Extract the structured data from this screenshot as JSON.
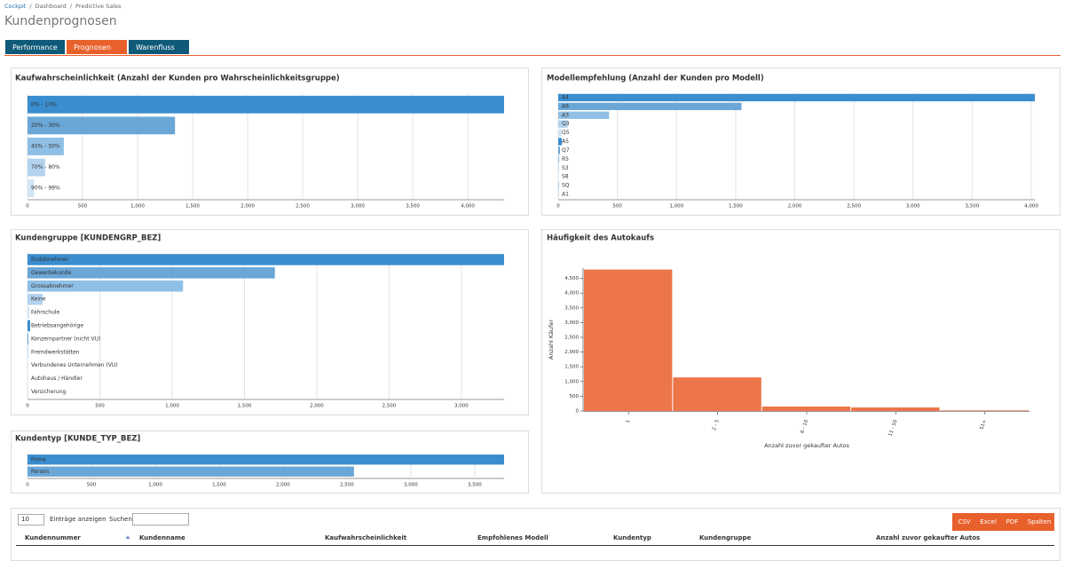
{
  "breadcrumb": [
    "Cockpit",
    "Dashboard",
    "Predictive Sales"
  ],
  "breadcrumb_separator": "/",
  "page_title": "Kundenprognosen",
  "tabs": [
    "Performance",
    "Prognosen",
    "Warenfluss"
  ],
  "chart_data": [
    {
      "type": "bar",
      "orientation": "horizontal",
      "title": "Kaufwahrscheinlichkeit (Anzahl der Kunden pro Wahrscheinlichkeitsgruppe)",
      "categories": [
        "0% - 10%",
        "20% - 30%",
        "40% - 50%",
        "70% - 80%",
        "90% - 99%"
      ],
      "values": [
        4330,
        1340,
        330,
        160,
        60
      ],
      "colors": [
        "#3a8dce",
        "#6aa6d6",
        "#8fbfe5",
        "#b3d3ee",
        "#d3e5f4"
      ],
      "xlim": [
        0,
        4330
      ],
      "xticks": [
        0,
        500,
        {
          "value": 1000,
          "label": "1,000"
        },
        {
          "value": 1500,
          "label": "1,500"
        },
        {
          "value": 2000,
          "label": "2,000"
        },
        {
          "value": 2500,
          "label": "2,500"
        },
        {
          "value": 3000,
          "label": "3,000"
        },
        {
          "value": 3500,
          "label": "3,500"
        },
        {
          "value": 4000,
          "label": "4,000"
        }
      ],
      "grid": true
    },
    {
      "type": "bar",
      "orientation": "horizontal",
      "title": "Modellempfehlung (Anzahl der Kunden pro Modell)",
      "categories": [
        "A4",
        "A6",
        "A3",
        "Q3",
        "Q5",
        "A5",
        "Q7",
        "R5",
        "S3",
        "S8",
        "SQ",
        "A1"
      ],
      "values": [
        4030,
        1550,
        430,
        80,
        30,
        30,
        15,
        8,
        5,
        5,
        3,
        2
      ],
      "colors": [
        "#3a8dce",
        "#6aa6d6",
        "#8fbfe5",
        "#b3d3ee",
        "#d3e5f4"
      ],
      "xlim": [
        0,
        4030
      ],
      "xticks": [
        0,
        500,
        {
          "value": 1000,
          "label": "1,000"
        },
        {
          "value": 1500,
          "label": "1,500"
        },
        {
          "value": 2000,
          "label": "2,000"
        },
        {
          "value": 2500,
          "label": "2,500"
        },
        {
          "value": 3000,
          "label": "3,000"
        },
        {
          "value": 3500,
          "label": "3,500"
        },
        {
          "value": 4000,
          "label": "4,000"
        }
      ],
      "grid": true
    },
    {
      "type": "bar",
      "orientation": "horizontal",
      "title": "Kundengruppe [KUNDENGRP_BEZ]",
      "categories": [
        "Endabnehmer",
        "Gewerbekunde",
        "Grossabnehmer",
        "Keine",
        "Fahrschule",
        "Betriebsangehörige",
        "Konzernpartner (nicht VU)",
        "Fremdwerkstätten",
        "Verbundenes Unternehmen (VU)",
        "Autohaus / Händler",
        "Versicherung"
      ],
      "values": [
        3295,
        1710,
        1075,
        105,
        12,
        18,
        6,
        3,
        2,
        1,
        1
      ],
      "colors": [
        "#3a8dce",
        "#6aa6d6",
        "#8fbfe5",
        "#b3d3ee",
        "#d3e5f4"
      ],
      "xlim": [
        0,
        3295
      ],
      "xticks": [
        0,
        500,
        {
          "value": 1000,
          "label": "1,000"
        },
        {
          "value": 1500,
          "label": "1,500"
        },
        {
          "value": 2000,
          "label": "2,000"
        },
        {
          "value": 2500,
          "label": "2,500"
        },
        {
          "value": 3000,
          "label": "3,000"
        }
      ],
      "grid": true
    },
    {
      "type": "bar",
      "orientation": "horizontal",
      "title": "Kundentyp [KUNDE_TYP_BEZ]",
      "categories": [
        "Firma",
        "Person"
      ],
      "values": [
        3730,
        2555
      ],
      "colors": [
        "#3a8dce",
        "#6aa6d6"
      ],
      "xlim": [
        0,
        3730
      ],
      "xticks": [
        0,
        500,
        {
          "value": 1000,
          "label": "1,000"
        },
        {
          "value": 1500,
          "label": "1,500"
        },
        {
          "value": 2000,
          "label": "2,000"
        },
        {
          "value": 2500,
          "label": "2,500"
        },
        {
          "value": 3000,
          "label": "3,000"
        },
        {
          "value": 3500,
          "label": "3,500"
        }
      ],
      "grid": true
    },
    {
      "type": "bar",
      "orientation": "vertical",
      "title": "Häufigkeit des Autokaufs",
      "categories": [
        "1",
        "2 - 5",
        "6 - 10",
        "11 - 50",
        "51+"
      ],
      "values": [
        4800,
        1140,
        150,
        120,
        20
      ],
      "colors": [
        "#ec7549"
      ],
      "ylim": [
        0,
        4850
      ],
      "yticks": [
        0,
        500,
        {
          "value": 1000,
          "label": "1,000"
        },
        {
          "value": 1500,
          "label": "1,500"
        },
        {
          "value": 2000,
          "label": "2,000"
        },
        {
          "value": 2500,
          "label": "2,500"
        },
        {
          "value": 3000,
          "label": "3,000"
        },
        {
          "value": 3500,
          "label": "3,500"
        },
        {
          "value": 4000,
          "label": "4,000"
        },
        {
          "value": 4500,
          "label": "4,500"
        }
      ],
      "y_label": "Anzahl Käufer",
      "x_label": "Anzahl zuvor gekaufter Autos",
      "grid": false
    }
  ],
  "table": {
    "page_length": "10",
    "page_length_label": "Einträge anzeigen",
    "search_label": "Suchen",
    "buttons": [
      "CSV",
      "Excel",
      "PDF",
      "Spalten"
    ],
    "columns": [
      "Kundennummer",
      "Kundenname",
      "Kaufwahrscheinlichkeit",
      "Empfohlenes Modell",
      "Kundentyp",
      "Kundengruppe",
      "Anzahl zuvor gekaufter Autos"
    ]
  }
}
